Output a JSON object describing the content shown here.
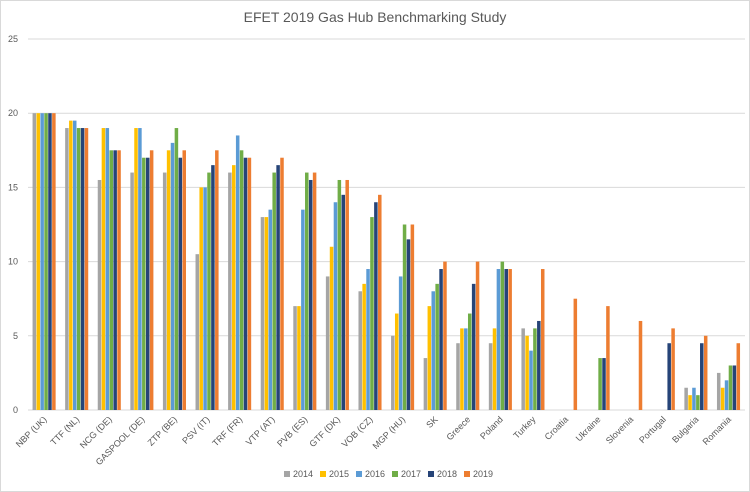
{
  "chart_data": {
    "type": "bar",
    "title": "EFET 2019 Gas Hub Benchmarking Study",
    "xlabel": "",
    "ylabel": "",
    "ylim": [
      0,
      25
    ],
    "yticks": [
      0,
      5,
      10,
      15,
      20,
      25
    ],
    "grid": "horizontal",
    "legend_position": "bottom",
    "categories": [
      "NBP (UK)",
      "TTF (NL)",
      "NCG (DE)",
      "GASPOOL (DE)",
      "ZTP (BE)",
      "PSV (IT)",
      "TRF (FR)",
      "VTP (AT)",
      "PVB (ES)",
      "GTF (DK)",
      "VOB (CZ)",
      "MGP (HU)",
      "SK",
      "Greece",
      "Poland",
      "Turkey",
      "Croatia",
      "Ukraine",
      "Slovenia",
      "Portugal",
      "Bulgaria",
      "Romania"
    ],
    "series": [
      {
        "name": "2014",
        "color": "#a5a5a5",
        "values": [
          20,
          19,
          15.5,
          16,
          16,
          10.5,
          16,
          13,
          7,
          9,
          8,
          5,
          3.5,
          4.5,
          4.5,
          5.5,
          0,
          0,
          0,
          0,
          1.5,
          2.5
        ]
      },
      {
        "name": "2015",
        "color": "#ffc000",
        "values": [
          20,
          19.5,
          19,
          19,
          17.5,
          15,
          16.5,
          13,
          7,
          11,
          8.5,
          6.5,
          7,
          5.5,
          5.5,
          5,
          0,
          0,
          0,
          0,
          1,
          1.5
        ]
      },
      {
        "name": "2016",
        "color": "#5b9bd5",
        "values": [
          20,
          19.5,
          19,
          19,
          18,
          15,
          18.5,
          13.5,
          13.5,
          14,
          9.5,
          9,
          8,
          5.5,
          9.5,
          4,
          0,
          0,
          0,
          0,
          1.5,
          2
        ]
      },
      {
        "name": "2017",
        "color": "#70ad47",
        "values": [
          20,
          19,
          17.5,
          17,
          19,
          16,
          17.5,
          16,
          16,
          15.5,
          13,
          12.5,
          8.5,
          6.5,
          10,
          5.5,
          0,
          3.5,
          0,
          0,
          1,
          3
        ]
      },
      {
        "name": "2018",
        "color": "#264478",
        "values": [
          20,
          19,
          17.5,
          17,
          17,
          16.5,
          17,
          16.5,
          15.5,
          14.5,
          14,
          11.5,
          9.5,
          8.5,
          9.5,
          6,
          0,
          3.5,
          0,
          4.5,
          4.5,
          3
        ]
      },
      {
        "name": "2019",
        "color": "#ed7d31",
        "values": [
          20,
          19,
          17.5,
          17.5,
          17.5,
          17.5,
          17,
          17,
          16,
          15.5,
          14.5,
          12.5,
          10,
          10,
          9.5,
          9.5,
          7.5,
          7,
          6,
          5.5,
          5,
          4.5
        ]
      }
    ]
  }
}
